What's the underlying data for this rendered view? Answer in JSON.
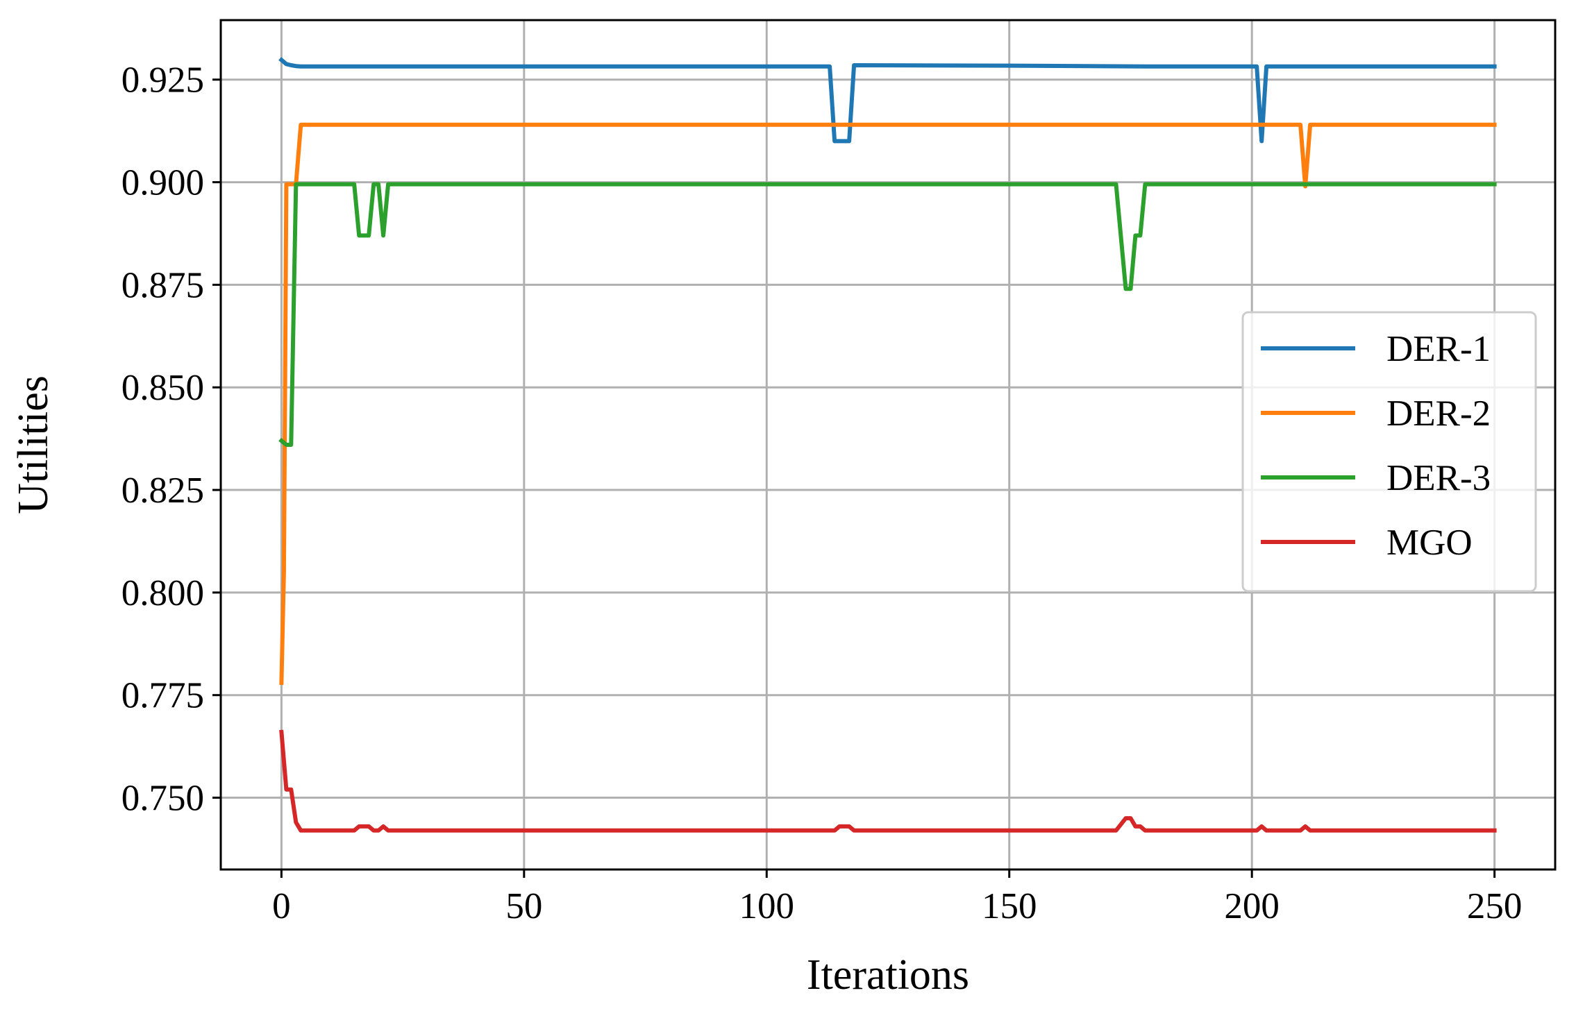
{
  "chart_data": {
    "type": "line",
    "title": "",
    "xlabel": "Iterations",
    "ylabel": "Utilities",
    "xlim": [
      -12.5,
      262.5
    ],
    "ylim": [
      0.7325,
      0.9395
    ],
    "xticks": [
      0,
      50,
      100,
      150,
      200,
      250
    ],
    "yticks": [
      0.75,
      0.775,
      0.8,
      0.825,
      0.85,
      0.875,
      0.9,
      0.925
    ],
    "xtick_labels": [
      "0",
      "50",
      "100",
      "150",
      "200",
      "250"
    ],
    "ytick_labels": [
      "0.750",
      "0.775",
      "0.800",
      "0.825",
      "0.850",
      "0.875",
      "0.900",
      "0.925"
    ],
    "grid": true,
    "legend_position": "center-right",
    "series": [
      {
        "name": "DER-1",
        "color": "#1f77b4",
        "points": [
          [
            0,
            0.9298
          ],
          [
            1,
            0.9288
          ],
          [
            2,
            0.9285
          ],
          [
            3,
            0.9283
          ],
          [
            4,
            0.9282
          ],
          [
            113,
            0.9282
          ],
          [
            114,
            0.91
          ],
          [
            117,
            0.91
          ],
          [
            118,
            0.9285
          ],
          [
            150,
            0.9284
          ],
          [
            178,
            0.9282
          ],
          [
            201,
            0.9282
          ],
          [
            202,
            0.91
          ],
          [
            203,
            0.9282
          ],
          [
            250,
            0.9282
          ]
        ]
      },
      {
        "name": "DER-2",
        "color": "#ff7f0e",
        "points": [
          [
            0,
            0.778
          ],
          [
            0.5,
            0.805
          ],
          [
            1,
            0.8995
          ],
          [
            3,
            0.8995
          ],
          [
            4,
            0.914
          ],
          [
            210,
            0.914
          ],
          [
            211,
            0.899
          ],
          [
            212,
            0.914
          ],
          [
            250,
            0.914
          ]
        ]
      },
      {
        "name": "DER-3",
        "color": "#2ca02c",
        "points": [
          [
            0,
            0.837
          ],
          [
            1,
            0.836
          ],
          [
            2,
            0.836
          ],
          [
            3,
            0.8995
          ],
          [
            15,
            0.8995
          ],
          [
            16,
            0.887
          ],
          [
            18,
            0.887
          ],
          [
            19,
            0.8995
          ],
          [
            20,
            0.8995
          ],
          [
            21,
            0.887
          ],
          [
            22,
            0.8995
          ],
          [
            172,
            0.8995
          ],
          [
            174,
            0.874
          ],
          [
            175,
            0.874
          ],
          [
            176,
            0.887
          ],
          [
            177,
            0.887
          ],
          [
            178,
            0.8995
          ],
          [
            250,
            0.8995
          ]
        ]
      },
      {
        "name": "MGO",
        "color": "#d62728",
        "points": [
          [
            0,
            0.766
          ],
          [
            1,
            0.752
          ],
          [
            2,
            0.752
          ],
          [
            3,
            0.744
          ],
          [
            4,
            0.742
          ],
          [
            15,
            0.742
          ],
          [
            16,
            0.743
          ],
          [
            18,
            0.743
          ],
          [
            19,
            0.742
          ],
          [
            20,
            0.742
          ],
          [
            21,
            0.743
          ],
          [
            22,
            0.742
          ],
          [
            114,
            0.742
          ],
          [
            115,
            0.743
          ],
          [
            117,
            0.743
          ],
          [
            118,
            0.742
          ],
          [
            172,
            0.742
          ],
          [
            174,
            0.745
          ],
          [
            175,
            0.745
          ],
          [
            176,
            0.743
          ],
          [
            177,
            0.743
          ],
          [
            178,
            0.742
          ],
          [
            201,
            0.742
          ],
          [
            202,
            0.743
          ],
          [
            203,
            0.742
          ],
          [
            210,
            0.742
          ],
          [
            211,
            0.743
          ],
          [
            212,
            0.742
          ],
          [
            250,
            0.742
          ]
        ]
      }
    ]
  }
}
